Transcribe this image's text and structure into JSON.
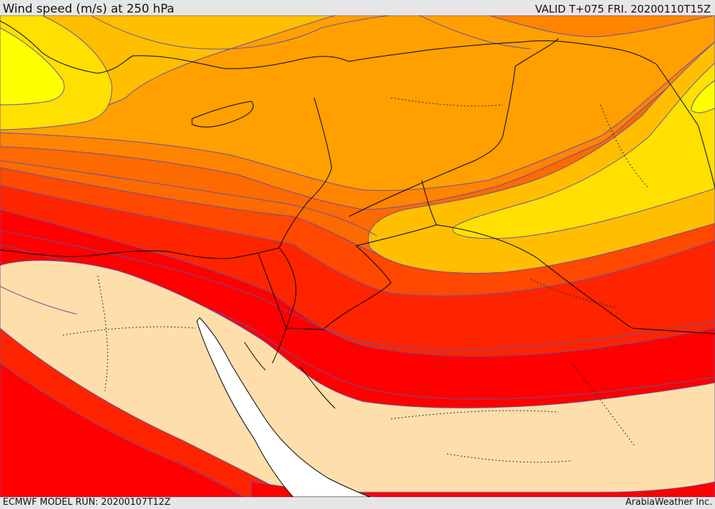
{
  "header": {
    "title": "Wind speed (m/s) at 250 hPa",
    "valid_time": "VALID T+075 FRI. 20200110T15Z"
  },
  "footer": {
    "model_run": "ECMWF MODEL RUN: 20200107T12Z",
    "credit": "ArabiaWeather Inc."
  },
  "colors": {
    "band_yellow_light": "#ffff00",
    "band_yellow": "#ffe000",
    "band_amber": "#ffbf00",
    "band_orange_light": "#ffa000",
    "band_orange": "#ff8400",
    "band_orange_dark": "#fd6a00",
    "band_red_orange": "#ff4800",
    "band_red": "#ff2400",
    "band_bright_red": "#ff0000",
    "low_speed_tan": "#fedfab",
    "sea_white": "#ffffff",
    "contour_line": "#6a4fa0"
  }
}
